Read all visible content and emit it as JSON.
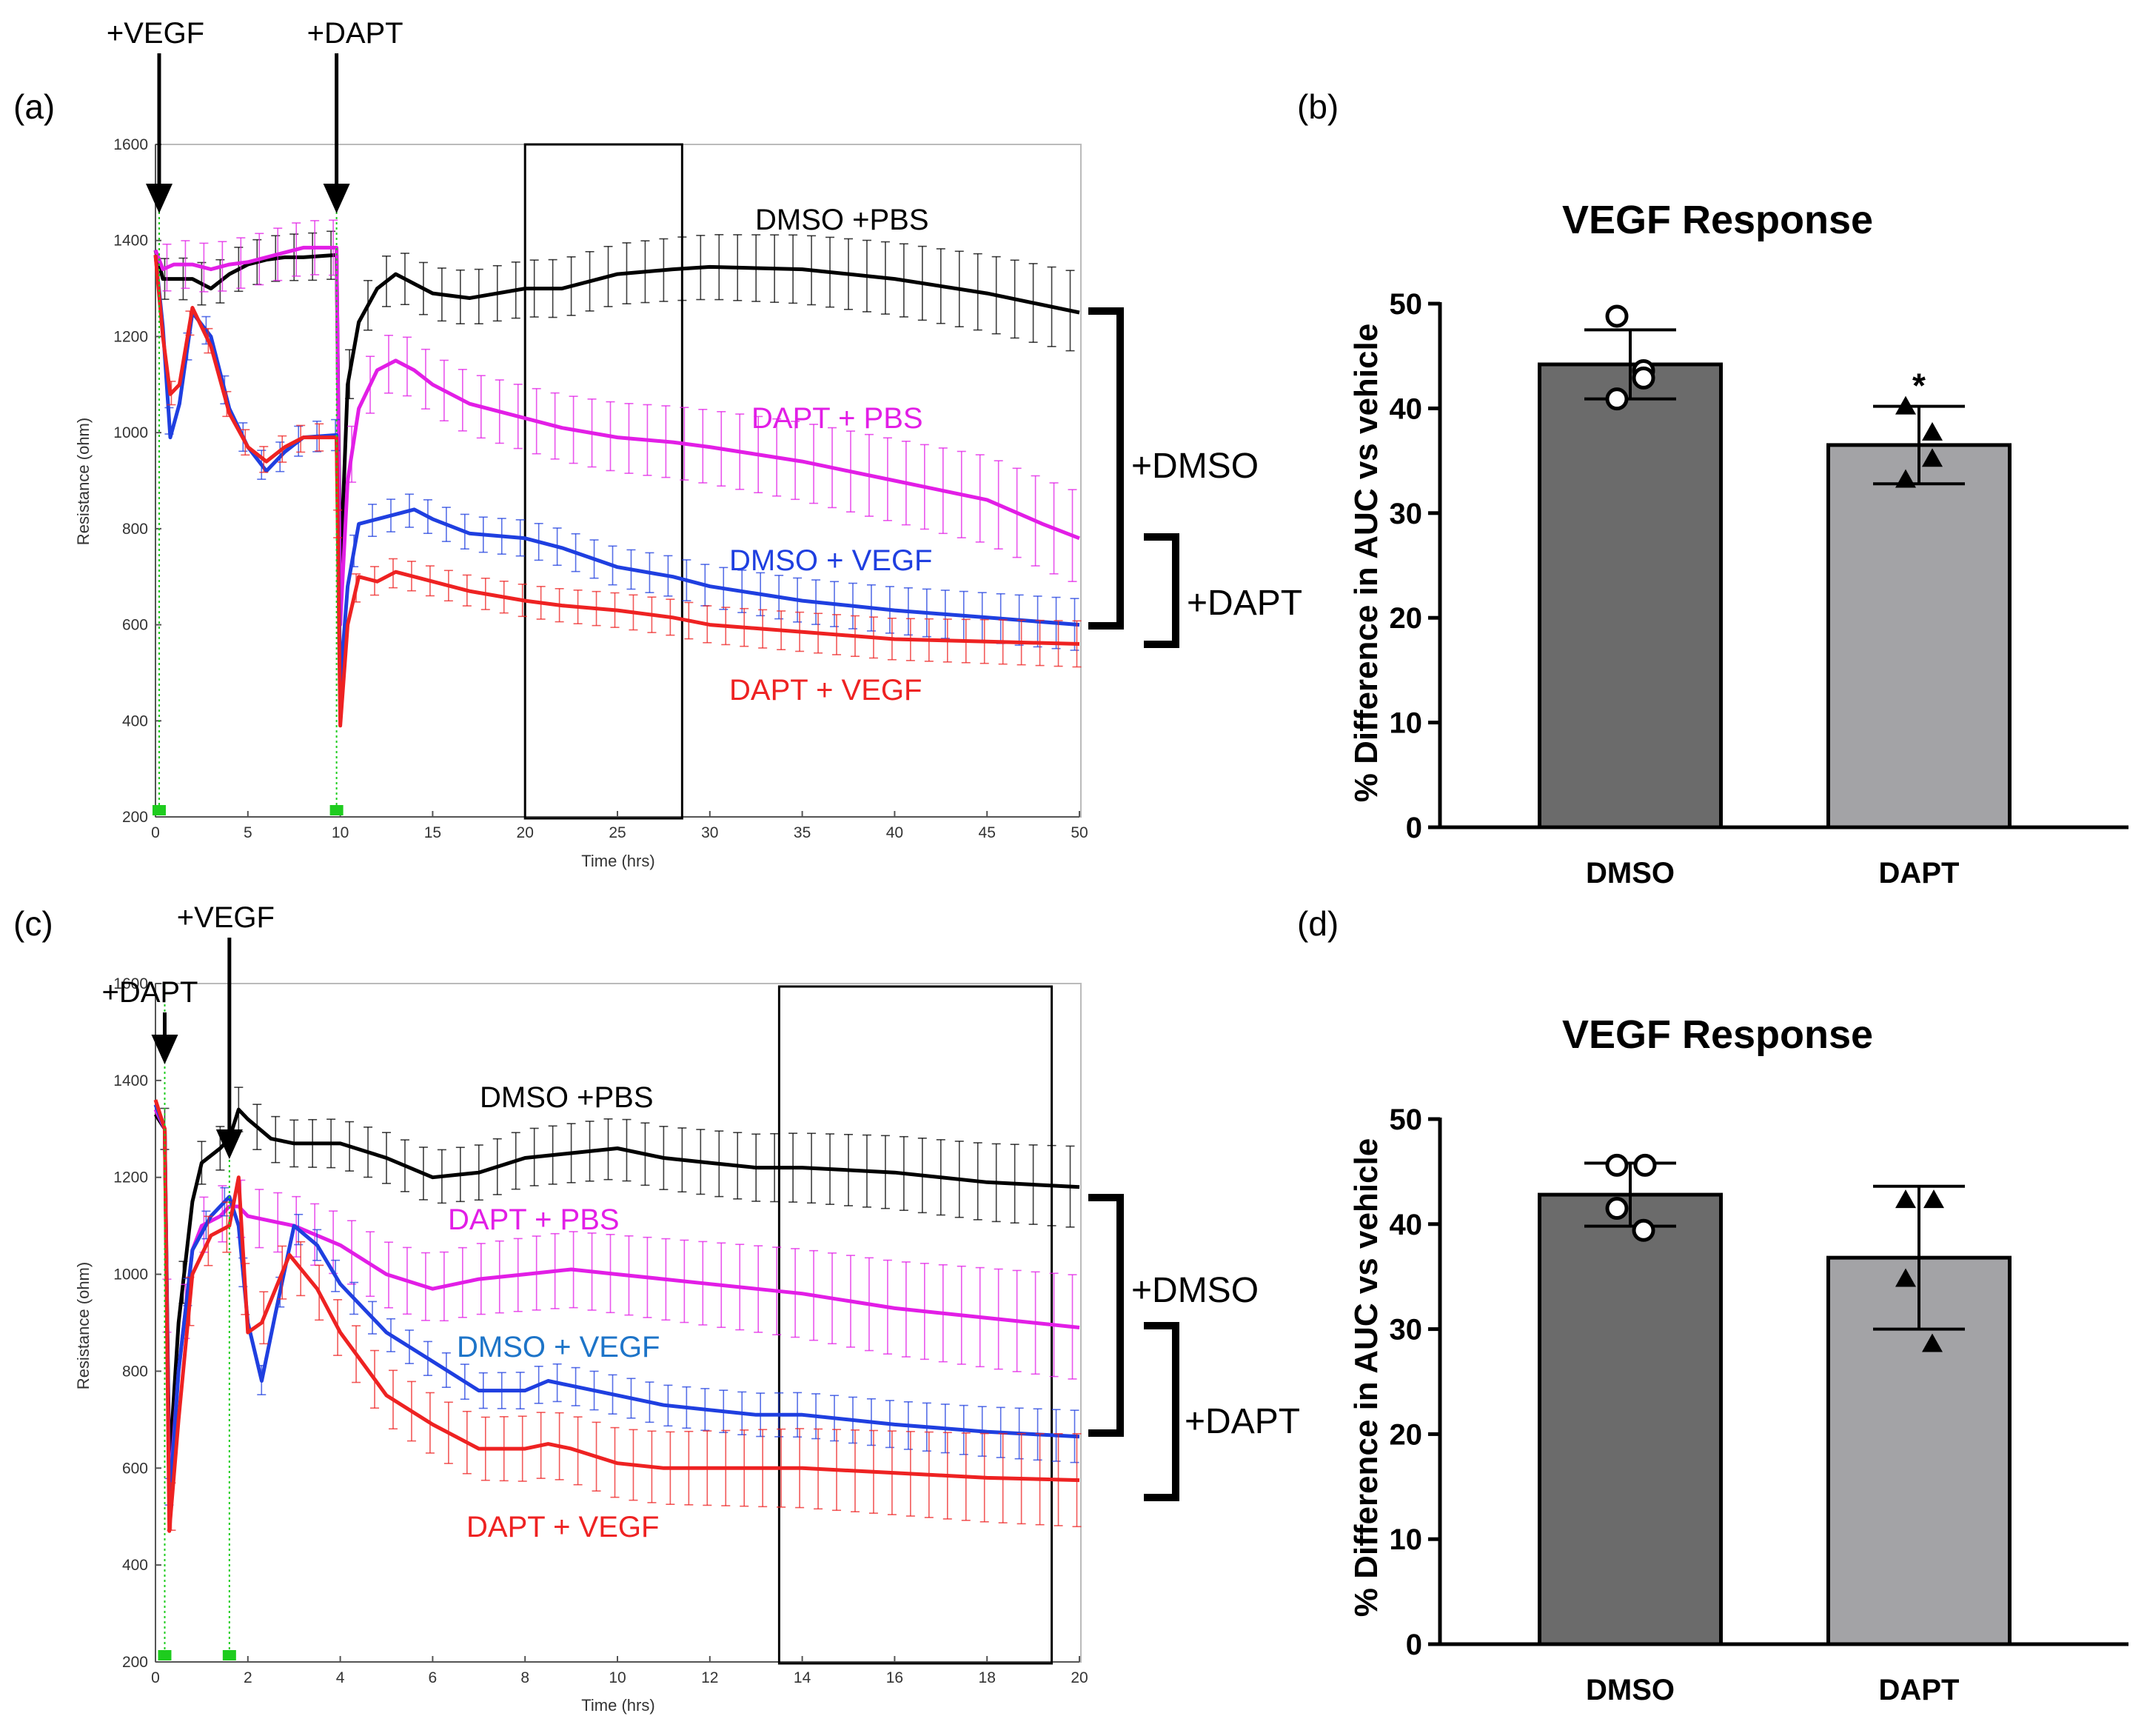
{
  "panel_labels": {
    "a": "(a)",
    "b": "(b)",
    "c": "(c)",
    "d": "(d)"
  },
  "colors": {
    "dmso_pbs": "#000000",
    "dapt_pbs": "#e21ee6",
    "dmso_vegf": "#1f3fe0",
    "dapt_vegf": "#ee2222",
    "dmso_vegf_label": "#1d74c8",
    "bar_dmso": "#6b6b6b",
    "bar_dapt": "#a3a3a6",
    "marker": "#1ecc1e"
  },
  "chart_data": [
    {
      "id": "a",
      "type": "line",
      "xlabel": "Time (hrs)",
      "ylabel": "Resistance (ohm)",
      "xlim": [
        0,
        50
      ],
      "ylim": [
        200,
        1600
      ],
      "xticks": [
        0,
        5,
        10,
        15,
        20,
        25,
        30,
        35,
        40,
        45,
        50
      ],
      "yticks": [
        200,
        400,
        600,
        800,
        1000,
        1200,
        1400,
        1600
      ],
      "events": [
        {
          "label": "+VEGF",
          "x": 0.2
        },
        {
          "label": "+DAPT",
          "x": 9.8
        }
      ],
      "window": [
        20,
        28.5
      ],
      "series": [
        {
          "name": "DMSO +PBS",
          "color_key": "dmso_pbs",
          "err": 70,
          "points": [
            [
              0,
              1380
            ],
            [
              0.4,
              1320
            ],
            [
              1,
              1320
            ],
            [
              2,
              1320
            ],
            [
              3,
              1300
            ],
            [
              4,
              1330
            ],
            [
              5,
              1350
            ],
            [
              6,
              1360
            ],
            [
              7,
              1365
            ],
            [
              8,
              1365
            ],
            [
              9.8,
              1370
            ],
            [
              10,
              700
            ],
            [
              10.4,
              1100
            ],
            [
              11,
              1230
            ],
            [
              12,
              1300
            ],
            [
              13,
              1330
            ],
            [
              14,
              1310
            ],
            [
              15,
              1290
            ],
            [
              17,
              1280
            ],
            [
              20,
              1300
            ],
            [
              22,
              1300
            ],
            [
              25,
              1330
            ],
            [
              28,
              1340
            ],
            [
              30,
              1345
            ],
            [
              35,
              1340
            ],
            [
              40,
              1320
            ],
            [
              45,
              1290
            ],
            [
              50,
              1250
            ]
          ]
        },
        {
          "name": "DAPT + PBS",
          "color_key": "dapt_pbs",
          "err": 80,
          "points": [
            [
              0,
              1380
            ],
            [
              0.4,
              1340
            ],
            [
              1,
              1350
            ],
            [
              2,
              1350
            ],
            [
              3,
              1340
            ],
            [
              4,
              1350
            ],
            [
              5,
              1355
            ],
            [
              6,
              1365
            ],
            [
              7,
              1375
            ],
            [
              8,
              1385
            ],
            [
              9.8,
              1385
            ],
            [
              10,
              600
            ],
            [
              10.4,
              900
            ],
            [
              11,
              1050
            ],
            [
              12,
              1130
            ],
            [
              13,
              1150
            ],
            [
              14,
              1130
            ],
            [
              15,
              1100
            ],
            [
              17,
              1060
            ],
            [
              20,
              1030
            ],
            [
              22,
              1010
            ],
            [
              25,
              990
            ],
            [
              28,
              980
            ],
            [
              30,
              970
            ],
            [
              35,
              940
            ],
            [
              40,
              900
            ],
            [
              45,
              860
            ],
            [
              48,
              810
            ],
            [
              50,
              780
            ]
          ]
        },
        {
          "name": "DMSO + VEGF",
          "color_key": "dmso_vegf",
          "err": 45,
          "points": [
            [
              0,
              1370
            ],
            [
              0.4,
              1220
            ],
            [
              0.8,
              990
            ],
            [
              1.3,
              1060
            ],
            [
              2,
              1250
            ],
            [
              3,
              1200
            ],
            [
              4,
              1050
            ],
            [
              5,
              970
            ],
            [
              6,
              920
            ],
            [
              7,
              960
            ],
            [
              8,
              990
            ],
            [
              9.8,
              995
            ],
            [
              10,
              480
            ],
            [
              10.4,
              680
            ],
            [
              11,
              810
            ],
            [
              12,
              820
            ],
            [
              14,
              840
            ],
            [
              15,
              820
            ],
            [
              17,
              790
            ],
            [
              20,
              780
            ],
            [
              22,
              760
            ],
            [
              25,
              720
            ],
            [
              28,
              700
            ],
            [
              30,
              680
            ],
            [
              35,
              650
            ],
            [
              40,
              630
            ],
            [
              45,
              615
            ],
            [
              50,
              600
            ]
          ]
        },
        {
          "name": "DAPT + VEGF",
          "color_key": "dapt_vegf",
          "err": 40,
          "points": [
            [
              0,
              1370
            ],
            [
              0.4,
              1200
            ],
            [
              0.8,
              1080
            ],
            [
              1.3,
              1100
            ],
            [
              2,
              1260
            ],
            [
              3,
              1180
            ],
            [
              4,
              1040
            ],
            [
              5,
              970
            ],
            [
              6,
              940
            ],
            [
              7,
              970
            ],
            [
              8,
              990
            ],
            [
              9.8,
              990
            ],
            [
              10,
              390
            ],
            [
              10.4,
              600
            ],
            [
              11,
              700
            ],
            [
              12,
              690
            ],
            [
              13,
              710
            ],
            [
              15,
              690
            ],
            [
              17,
              670
            ],
            [
              20,
              650
            ],
            [
              22,
              640
            ],
            [
              25,
              630
            ],
            [
              28,
              615
            ],
            [
              30,
              600
            ],
            [
              35,
              585
            ],
            [
              40,
              570
            ],
            [
              45,
              565
            ],
            [
              50,
              560
            ]
          ]
        }
      ],
      "series_labels": [
        "DMSO +PBS",
        "DAPT + PBS",
        "DMSO + VEGF",
        "DAPT + VEGF"
      ],
      "brackets": [
        "+DMSO",
        "+DAPT"
      ]
    },
    {
      "id": "b",
      "type": "bar",
      "title": "VEGF Response",
      "ylabel": "% Difference in AUC vs vehicle",
      "ylim": [
        0,
        50
      ],
      "yticks": [
        0,
        10,
        20,
        30,
        40,
        50
      ],
      "categories": [
        "DMSO",
        "DAPT"
      ],
      "values": [
        44.2,
        36.5
      ],
      "sd": [
        3.3,
        3.7
      ],
      "points": [
        [
          48.8,
          43.6,
          40.9,
          42.9
        ],
        [
          40.2,
          37.7,
          33.2,
          35.2
        ]
      ],
      "significance": [
        "",
        "*"
      ]
    },
    {
      "id": "c",
      "type": "line",
      "xlabel": "Time (hrs)",
      "ylabel": "Resistance (ohm)",
      "xlim": [
        0,
        20
      ],
      "ylim": [
        200,
        1600
      ],
      "xticks": [
        0,
        2,
        4,
        6,
        8,
        10,
        12,
        14,
        16,
        18,
        20
      ],
      "yticks": [
        200,
        400,
        600,
        800,
        1000,
        1200,
        1400,
        1600
      ],
      "events": [
        {
          "label": "+DAPT",
          "x": 0.2
        },
        {
          "label": "+VEGF",
          "x": 1.6
        }
      ],
      "window": [
        13.5,
        19.4
      ],
      "series": [
        {
          "name": "DMSO +PBS",
          "color_key": "dmso_pbs",
          "err": 70,
          "points": [
            [
              0,
              1330
            ],
            [
              0.2,
              1300
            ],
            [
              0.3,
              600
            ],
            [
              0.5,
              900
            ],
            [
              0.8,
              1150
            ],
            [
              1,
              1230
            ],
            [
              1.4,
              1260
            ],
            [
              1.6,
              1280
            ],
            [
              1.8,
              1340
            ],
            [
              2,
              1320
            ],
            [
              2.5,
              1280
            ],
            [
              3,
              1270
            ],
            [
              4,
              1270
            ],
            [
              5,
              1240
            ],
            [
              6,
              1200
            ],
            [
              7,
              1210
            ],
            [
              8,
              1240
            ],
            [
              9,
              1250
            ],
            [
              10,
              1260
            ],
            [
              11,
              1240
            ],
            [
              12,
              1230
            ],
            [
              13,
              1220
            ],
            [
              14,
              1220
            ],
            [
              16,
              1210
            ],
            [
              18,
              1190
            ],
            [
              20,
              1180
            ]
          ]
        },
        {
          "name": "DAPT + PBS",
          "color_key": "dapt_pbs",
          "err": 90,
          "points": [
            [
              0,
              1340
            ],
            [
              0.2,
              1300
            ],
            [
              0.3,
              540
            ],
            [
              0.5,
              800
            ],
            [
              0.8,
              1050
            ],
            [
              1,
              1100
            ],
            [
              1.4,
              1120
            ],
            [
              1.6,
              1140
            ],
            [
              1.8,
              1140
            ],
            [
              2,
              1120
            ],
            [
              3,
              1100
            ],
            [
              4,
              1060
            ],
            [
              5,
              1000
            ],
            [
              6,
              970
            ],
            [
              7,
              990
            ],
            [
              8,
              1000
            ],
            [
              9,
              1010
            ],
            [
              10,
              1000
            ],
            [
              11,
              990
            ],
            [
              12,
              980
            ],
            [
              13,
              970
            ],
            [
              14,
              960
            ],
            [
              16,
              930
            ],
            [
              18,
              910
            ],
            [
              20,
              890
            ]
          ]
        },
        {
          "name": "DMSO + VEGF",
          "color_key": "dmso_vegf",
          "err": 45,
          "points": [
            [
              0,
              1350
            ],
            [
              0.2,
              1300
            ],
            [
              0.3,
              520
            ],
            [
              0.5,
              800
            ],
            [
              0.8,
              1050
            ],
            [
              1.2,
              1120
            ],
            [
              1.6,
              1160
            ],
            [
              1.8,
              1100
            ],
            [
              2,
              900
            ],
            [
              2.3,
              780
            ],
            [
              2.6,
              920
            ],
            [
              3,
              1100
            ],
            [
              3.5,
              1060
            ],
            [
              4,
              980
            ],
            [
              5,
              880
            ],
            [
              6,
              820
            ],
            [
              7,
              760
            ],
            [
              8,
              760
            ],
            [
              8.5,
              780
            ],
            [
              9,
              770
            ],
            [
              10,
              750
            ],
            [
              11,
              730
            ],
            [
              12,
              720
            ],
            [
              13,
              710
            ],
            [
              14,
              710
            ],
            [
              16,
              690
            ],
            [
              18,
              675
            ],
            [
              20,
              665
            ]
          ]
        },
        {
          "name": "DAPT + VEGF",
          "color_key": "dapt_vegf",
          "err": 80,
          "points": [
            [
              0,
              1360
            ],
            [
              0.2,
              1300
            ],
            [
              0.3,
              470
            ],
            [
              0.5,
              700
            ],
            [
              0.8,
              1000
            ],
            [
              1.2,
              1080
            ],
            [
              1.6,
              1100
            ],
            [
              1.8,
              1200
            ],
            [
              2,
              880
            ],
            [
              2.3,
              900
            ],
            [
              2.9,
              1040
            ],
            [
              3.5,
              970
            ],
            [
              4,
              880
            ],
            [
              5,
              750
            ],
            [
              6,
              690
            ],
            [
              7,
              640
            ],
            [
              8,
              640
            ],
            [
              8.5,
              650
            ],
            [
              9,
              640
            ],
            [
              10,
              610
            ],
            [
              11,
              600
            ],
            [
              12,
              600
            ],
            [
              13,
              600
            ],
            [
              14,
              600
            ],
            [
              16,
              590
            ],
            [
              18,
              580
            ],
            [
              20,
              575
            ]
          ]
        }
      ],
      "series_labels": [
        "DMSO +PBS",
        "DAPT + PBS",
        "DMSO + VEGF",
        "DAPT + VEGF"
      ],
      "brackets": [
        "+DMSO",
        "+DAPT"
      ]
    },
    {
      "id": "d",
      "type": "bar",
      "title": "VEGF Response",
      "ylabel": "% Difference in AUC vs vehicle",
      "ylim": [
        0,
        50
      ],
      "yticks": [
        0,
        10,
        20,
        30,
        40,
        50
      ],
      "categories": [
        "DMSO",
        "DAPT"
      ],
      "values": [
        42.8,
        36.8
      ],
      "sd": [
        3.0,
        6.8
      ],
      "points": [
        [
          45.6,
          45.6,
          41.5,
          39.4
        ],
        [
          42.3,
          42.3,
          34.8,
          28.6
        ]
      ],
      "significance": [
        "",
        ""
      ]
    }
  ]
}
